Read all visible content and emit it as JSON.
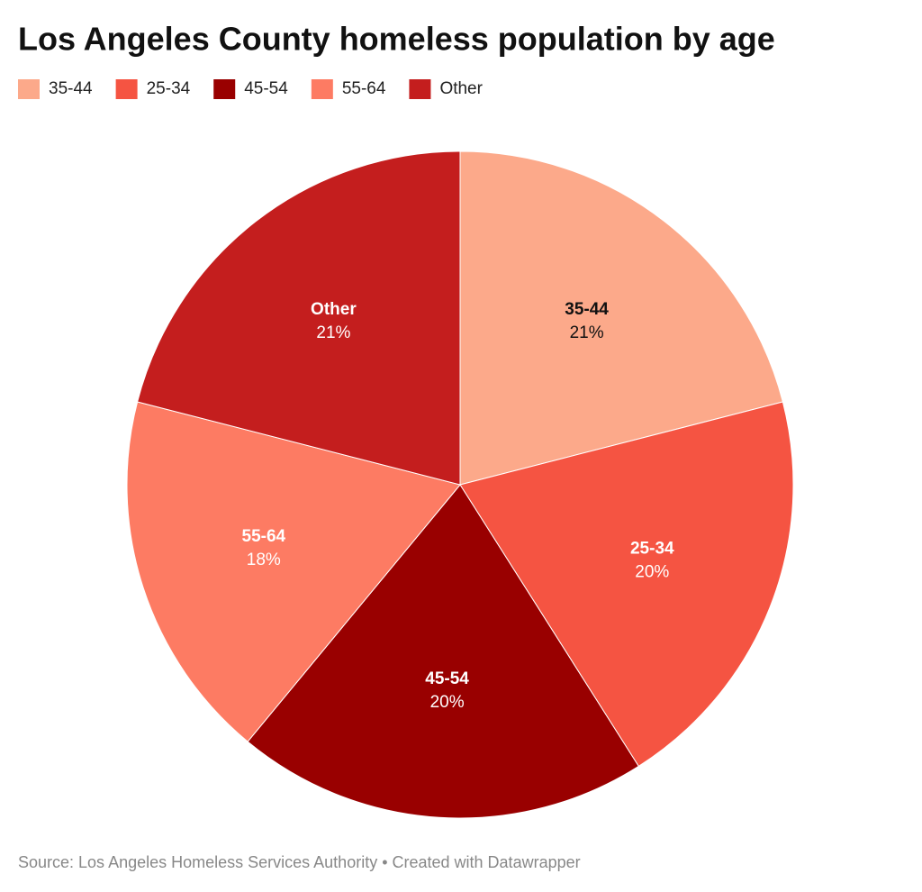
{
  "chart_data": {
    "type": "pie",
    "title": "Los Angeles County homeless population by age",
    "categories": [
      "35-44",
      "25-34",
      "45-54",
      "55-64",
      "Other"
    ],
    "values": [
      21,
      20,
      20,
      18,
      21
    ],
    "value_labels": [
      "21%",
      "20%",
      "20%",
      "18%",
      "21%"
    ],
    "colors": [
      "#fca98a",
      "#f55442",
      "#990000",
      "#fd7b63",
      "#c41e1e"
    ],
    "legend": "top-left",
    "source": "Source: Los Angeles Homeless Services Authority • Created with Datawrapper"
  }
}
